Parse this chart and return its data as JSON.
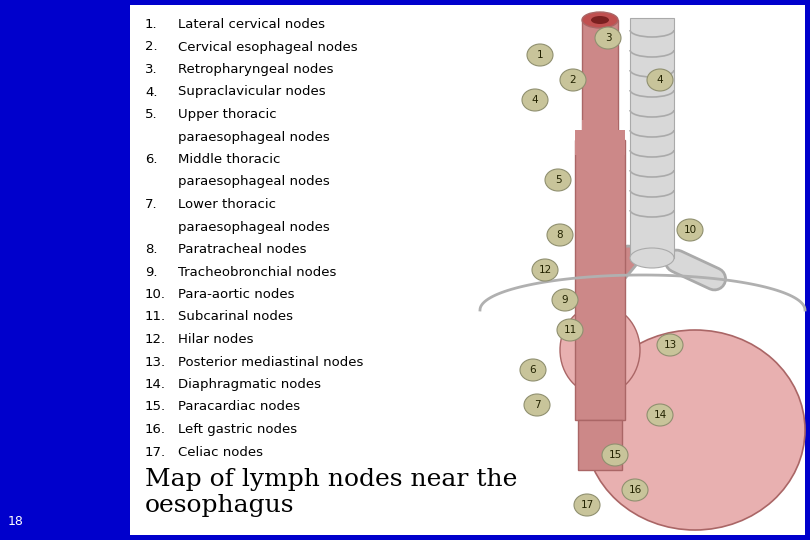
{
  "background_color": "#0000cc",
  "panel_color": "#ffffff",
  "slide_number": "18",
  "slide_number_color": "#ffffff",
  "caption_line1": "Map of lymph nodes near the",
  "caption_line2": "oesophagus",
  "caption_color": "#000000",
  "caption_fontsize": 18,
  "list_color": "#000000",
  "list_fontsize": 9.5,
  "node_color": "#c8c49a",
  "node_border": "#909070",
  "esophagus_color": "#cc8888",
  "esophagus_border": "#aa6666",
  "stomach_color": "#e8b0b0",
  "trachea_color": "#d8d8d8",
  "trachea_border": "#aaaaaa"
}
